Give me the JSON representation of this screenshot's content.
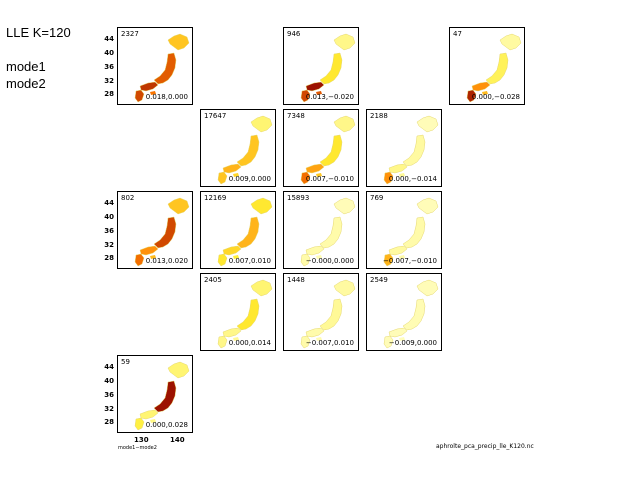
{
  "header": {
    "title": "LLE K=120",
    "lines": [
      "mode1",
      "mode2"
    ]
  },
  "chart_data": {
    "type": "heatmap",
    "title": "LLE K=120",
    "xlabel": "mode1−mode2",
    "ylabel": "",
    "source_label": "aphrolte_pca_precip_lle_K120.nc",
    "x_ticks": [
      "130",
      "140"
    ],
    "y_ticks": [
      "44",
      "40",
      "36",
      "32",
      "28"
    ],
    "grid": "5x4 panel grid, empty cells omitted",
    "colors": {
      "low": "#ffffd0",
      "mid": "#ffee33",
      "high": "#ff7a00",
      "max": "#8b0000"
    },
    "panels": [
      {
        "row": 0,
        "col": 0,
        "count": "2327",
        "coord": "0.018,0.000",
        "intensity": {
          "north": 0.45,
          "central": 0.75,
          "west": 0.85,
          "south": 0.8
        }
      },
      {
        "row": 0,
        "col": 2,
        "count": "946",
        "coord": "0.013,−0.020",
        "intensity": {
          "north": 0.15,
          "central": 0.35,
          "west": 0.95,
          "south": 0.8
        }
      },
      {
        "row": 0,
        "col": 4,
        "count": "47",
        "coord": "0.000,−0.028",
        "intensity": {
          "north": 0.1,
          "central": 0.25,
          "west": 0.6,
          "south": 0.9
        }
      },
      {
        "row": 1,
        "col": 1,
        "count": "17647",
        "coord": "0.009,0.000",
        "intensity": {
          "north": 0.2,
          "central": 0.45,
          "west": 0.5,
          "south": 0.45
        }
      },
      {
        "row": 1,
        "col": 2,
        "count": "7348",
        "coord": "0.007,−0.010",
        "intensity": {
          "north": 0.15,
          "central": 0.35,
          "west": 0.55,
          "south": 0.7
        }
      },
      {
        "row": 1,
        "col": 3,
        "count": "2188",
        "coord": "0.000,−0.014",
        "intensity": {
          "north": 0.05,
          "central": 0.1,
          "west": 0.15,
          "south": 0.6
        }
      },
      {
        "row": 2,
        "col": 0,
        "count": "802",
        "coord": "0.013,0.020",
        "intensity": {
          "north": 0.45,
          "central": 0.8,
          "west": 0.6,
          "south": 0.7
        }
      },
      {
        "row": 2,
        "col": 1,
        "count": "12169",
        "coord": "0.007,0.010",
        "intensity": {
          "north": 0.35,
          "central": 0.5,
          "west": 0.4,
          "south": 0.35
        }
      },
      {
        "row": 2,
        "col": 2,
        "count": "15893",
        "coord": "−0.000,0.000",
        "intensity": {
          "north": 0.05,
          "central": 0.08,
          "west": 0.08,
          "south": 0.08
        }
      },
      {
        "row": 2,
        "col": 3,
        "count": "769",
        "coord": "−0.007,−0.010",
        "intensity": {
          "north": 0.05,
          "central": 0.08,
          "west": 0.1,
          "south": 0.5
        }
      },
      {
        "row": 3,
        "col": 1,
        "count": "2405",
        "coord": "0.000,0.014",
        "intensity": {
          "north": 0.2,
          "central": 0.35,
          "west": 0.15,
          "south": 0.15
        }
      },
      {
        "row": 3,
        "col": 2,
        "count": "1448",
        "coord": "−0.007,0.010",
        "intensity": {
          "north": 0.1,
          "central": 0.12,
          "west": 0.08,
          "south": 0.08
        }
      },
      {
        "row": 3,
        "col": 3,
        "count": "2549",
        "coord": "−0.009,0.000",
        "intensity": {
          "north": 0.05,
          "central": 0.06,
          "west": 0.05,
          "south": 0.05
        }
      },
      {
        "row": 4,
        "col": 0,
        "count": "59",
        "coord": "0.000,0.028",
        "intensity": {
          "north": 0.2,
          "central": 0.95,
          "west": 0.2,
          "south": 0.3
        }
      }
    ]
  }
}
